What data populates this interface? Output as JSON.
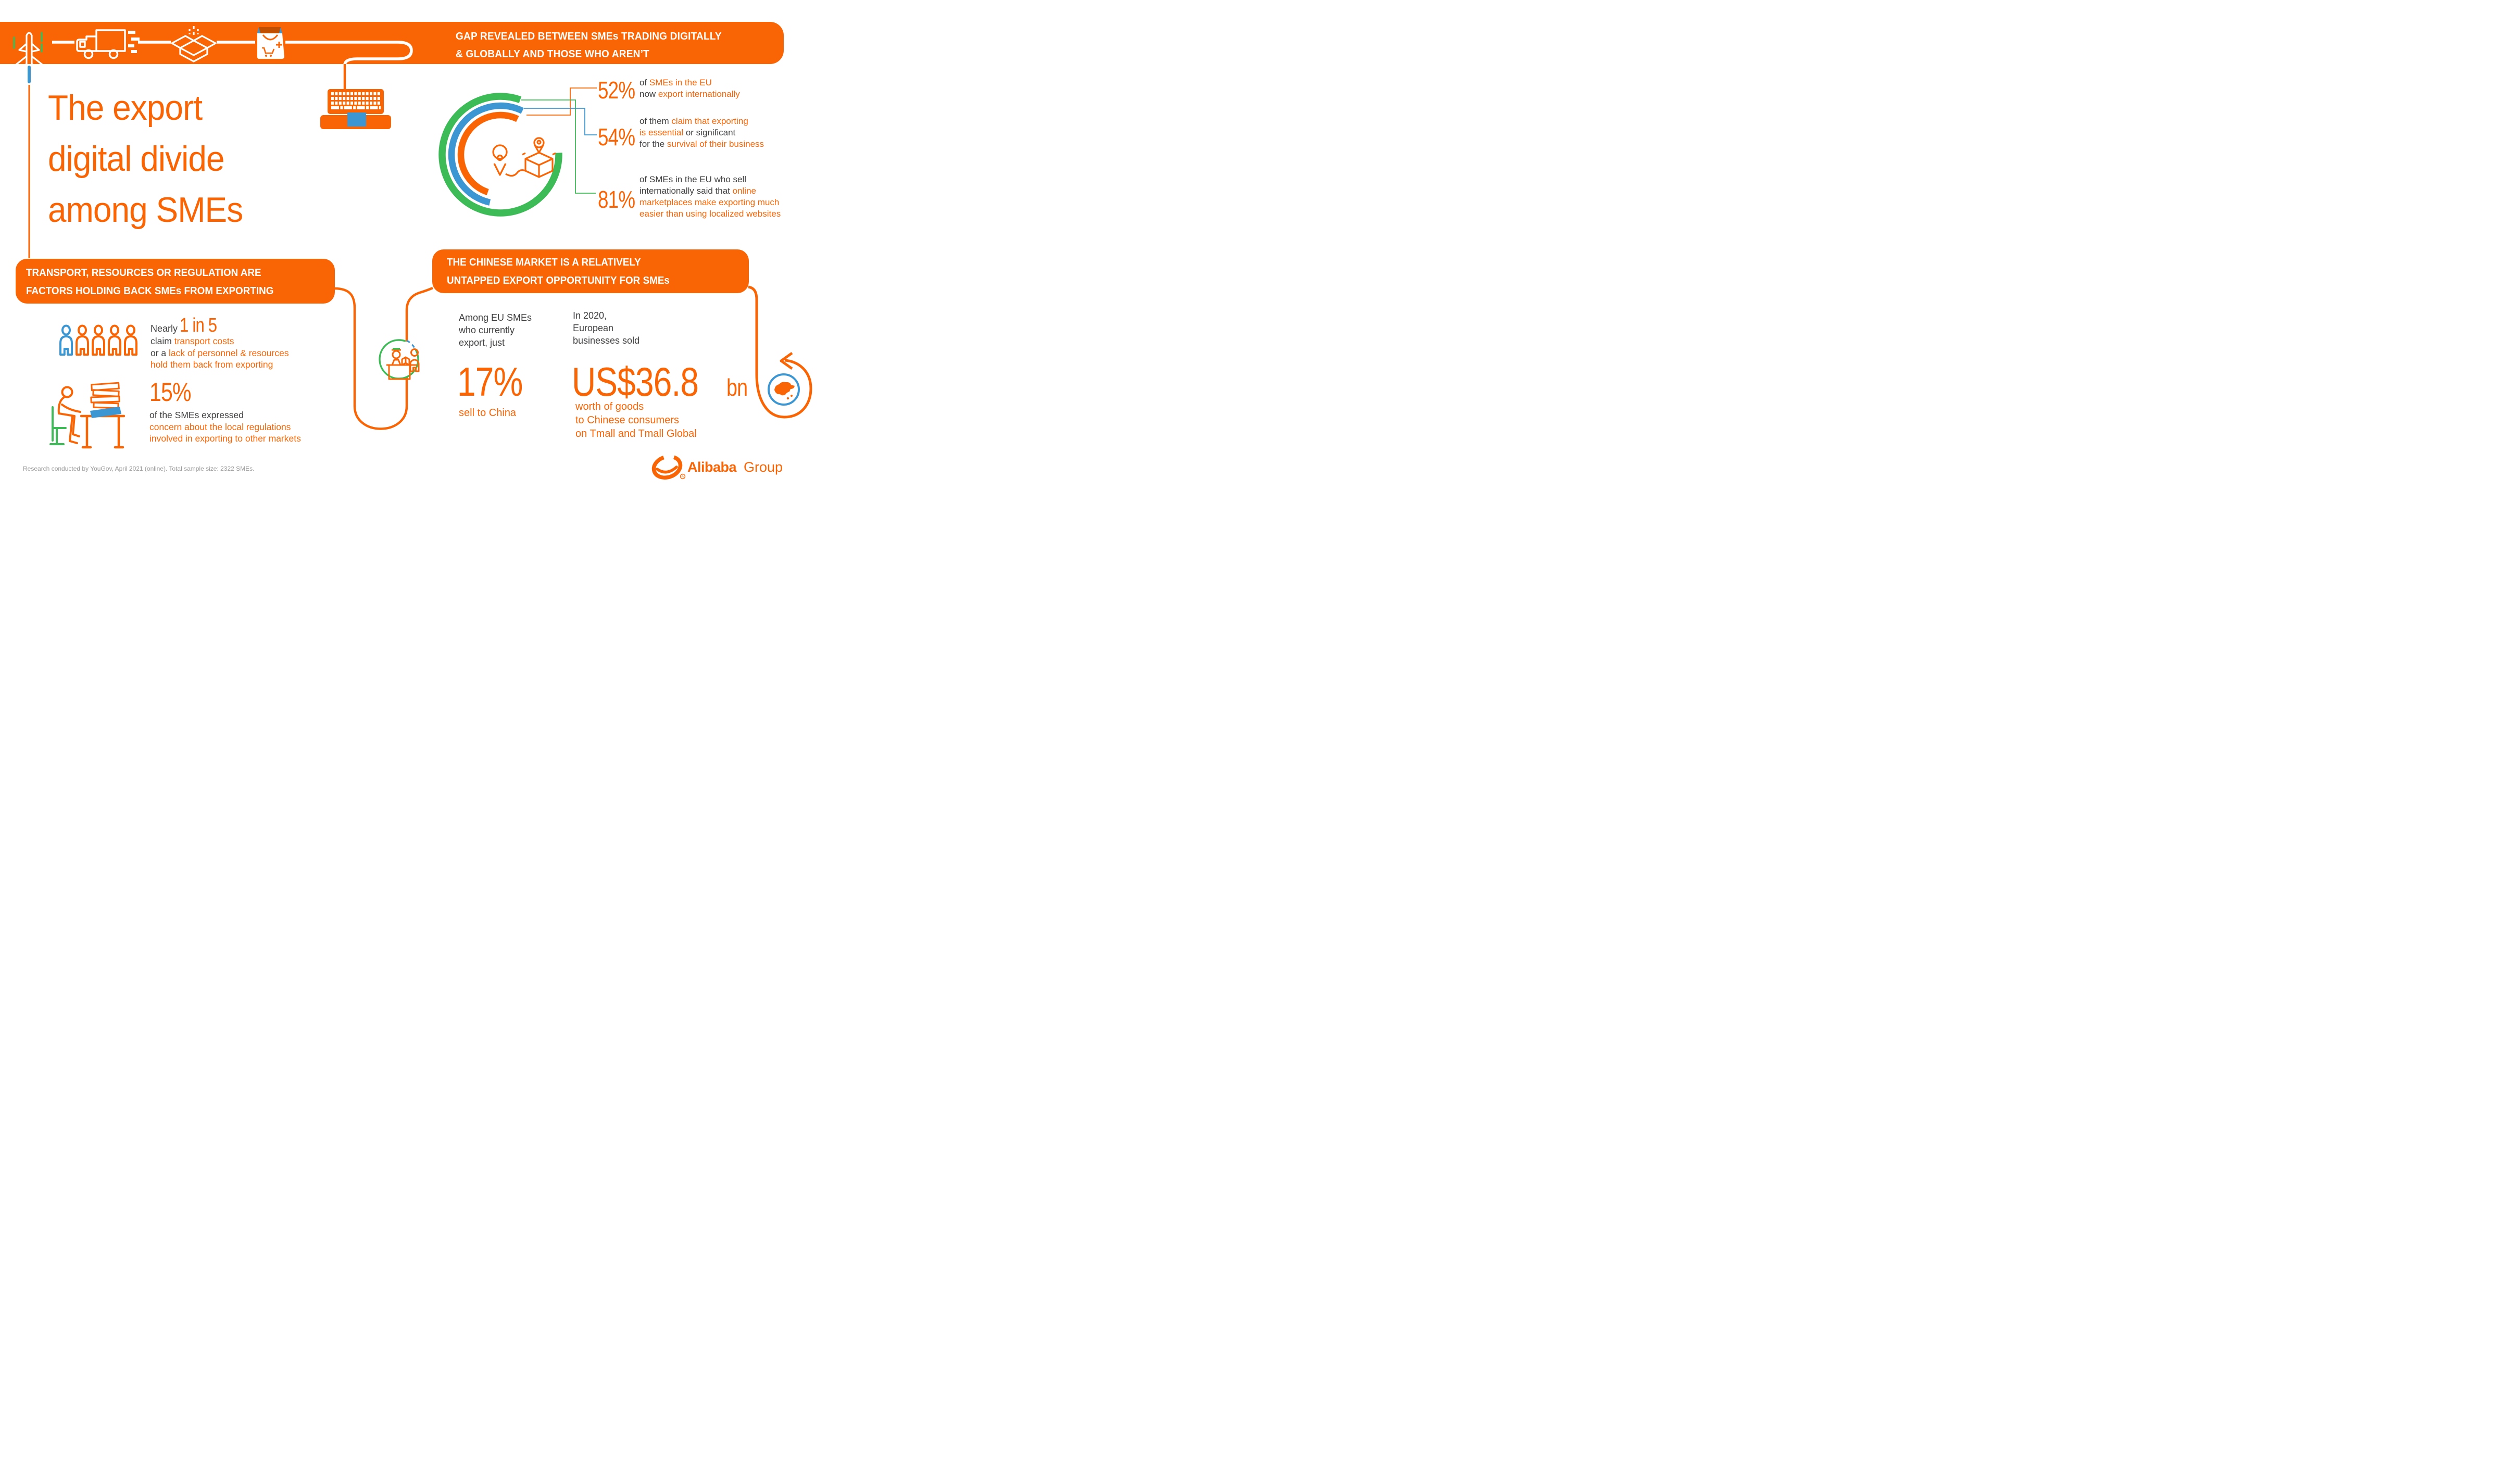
{
  "page": {
    "footer": "Research conducted by YouGov, April 2021 (online). Total sample size: 2322 SMEs.",
    "logo": {
      "brand_bold": "Alibaba",
      "brand_regular": "Group"
    }
  },
  "colors": {
    "orange": "#F96505",
    "green": "#3DBB56",
    "blue": "#3C96D2",
    "dark": "#3F3F41",
    "gray": "#9B9B9B",
    "bag_lid": "#C05000"
  },
  "top_banner": {
    "headline_line1": "GAP REVEALED BETWEEN SMEs TRADING DIGITALLY",
    "headline_line2": "& GLOBALLY AND THOSE WHO AREN’T",
    "icons": [
      "plane-icon",
      "delivery-truck-icon",
      "open-box-icon",
      "shopping-bag-icon",
      "laptop-icon"
    ]
  },
  "title": {
    "line1": "The export",
    "line2": "digital divide",
    "line3": "among SMEs"
  },
  "eu_stats": {
    "s52": {
      "value": "52%",
      "desc": [
        [
          {
            "t": "of ",
            "c": "dark"
          },
          {
            "t": "SMEs in the EU",
            "c": "orange"
          }
        ],
        [
          {
            "t": "now ",
            "c": "dark"
          },
          {
            "t": "export internationally",
            "c": "orange"
          }
        ]
      ]
    },
    "s54": {
      "value": "54%",
      "desc": [
        [
          {
            "t": "of them ",
            "c": "dark"
          },
          {
            "t": "claim that exporting",
            "c": "orange"
          }
        ],
        [
          {
            "t": "is essential ",
            "c": "orange"
          },
          {
            "t": "or significant",
            "c": "dark"
          }
        ],
        [
          {
            "t": "for the ",
            "c": "dark"
          },
          {
            "t": "survival of their business",
            "c": "orange"
          }
        ]
      ]
    },
    "s81": {
      "value": "81%",
      "desc": [
        [
          {
            "t": "of SMEs in the EU who sell",
            "c": "dark"
          }
        ],
        [
          {
            "t": "internationally said that ",
            "c": "dark"
          },
          {
            "t": "online",
            "c": "orange"
          }
        ],
        [
          {
            "t": "marketplaces make exporting much",
            "c": "orange"
          }
        ],
        [
          {
            "t": "easier than using localized websites",
            "c": "orange"
          }
        ]
      ]
    }
  },
  "factors": {
    "banner_line1": "TRANSPORT, RESOURCES OR REGULATION ARE",
    "banner_line2": "FACTORS HOLDING BACK SMEs FROM EXPORTING",
    "one_in_five": {
      "prefix": "Nearly",
      "value": "1 in 5",
      "desc": [
        [
          {
            "t": "claim ",
            "c": "dark"
          },
          {
            "t": "transport costs",
            "c": "orange"
          }
        ],
        [
          {
            "t": "or a ",
            "c": "dark"
          },
          {
            "t": "lack of personnel & resources",
            "c": "orange"
          }
        ],
        [
          {
            "t": "hold them back from exporting",
            "c": "orange"
          }
        ]
      ]
    },
    "fifteen": {
      "value": "15%",
      "desc": [
        [
          {
            "t": "of the SMEs expressed",
            "c": "dark"
          }
        ],
        [
          {
            "t": "concern about the local regulations",
            "c": "orange"
          }
        ],
        [
          {
            "t": "involved in exporting to other markets",
            "c": "orange"
          }
        ]
      ]
    }
  },
  "china": {
    "banner_line1": "THE CHINESE MARKET IS A RELATIVELY",
    "banner_line2": "UNTAPPED EXPORT OPPORTUNITY FOR SMEs",
    "col_a": {
      "intro": [
        "Among EU SMEs",
        "who currently",
        "export, just"
      ],
      "value": "17%",
      "caption": "sell to China"
    },
    "col_b": {
      "intro": [
        "In 2020,",
        "European",
        "businesses sold"
      ],
      "value_main": "US$36.8",
      "value_unit": "bn",
      "caption": [
        "worth of goods",
        "to Chinese consumers",
        "on Tmall and Tmall Global"
      ]
    }
  },
  "chart_data": {
    "type": "donut",
    "title": "EU SME export behaviour (three concentric arcs, % of ring shown)",
    "center": [
      961,
      297
    ],
    "legend_position": "right-callouts",
    "series": [
      {
        "name": "SMEs in the EU that now export internationally",
        "value": 52,
        "color": "#F96505",
        "radius": 76,
        "stroke_width": 12.5,
        "end_angle_deg": 26
      },
      {
        "name": "Exporting SMEs claiming exporting is essential or significant for the survival of their business",
        "value": 54,
        "color": "#3C96D2",
        "radius": 94,
        "stroke_width": 12.5,
        "end_angle_deg": 27
      },
      {
        "name": "Internationally selling EU SMEs saying online marketplaces make exporting much easier than using localized websites",
        "value": 81,
        "color": "#3DBB56",
        "radius": 112,
        "stroke_width": 13.5,
        "end_angle_deg": 20
      }
    ],
    "related_figures": [
      {
        "label": "SMEs claiming transport costs or a lack of personnel & resources hold them back from exporting",
        "value": "Nearly 1 in 5"
      },
      {
        "label": "SMEs expressing concern about the local regulations involved in exporting to other markets",
        "value": "15%"
      },
      {
        "label": "EU SMEs who currently export that sell to China",
        "value": "17%"
      },
      {
        "label": "Goods sold by European businesses to Chinese consumers on Tmall and Tmall Global in 2020",
        "value": "US$36.8bn"
      }
    ]
  }
}
